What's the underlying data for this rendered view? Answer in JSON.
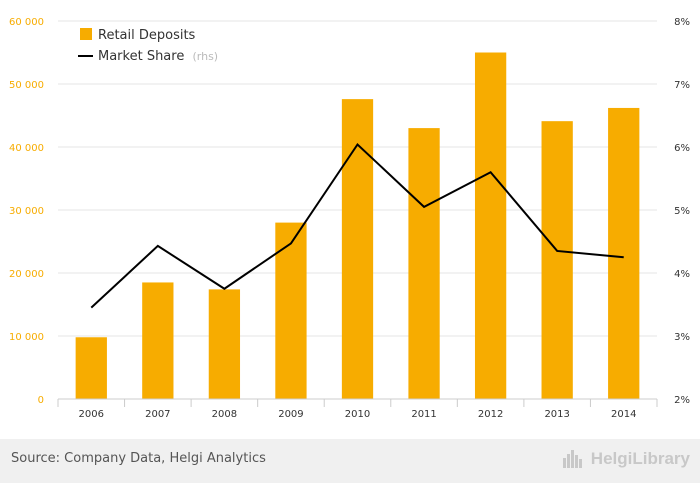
{
  "chart_data": {
    "type": "bar",
    "categories": [
      "2006",
      "2007",
      "2008",
      "2009",
      "2010",
      "2011",
      "2012",
      "2013",
      "2014"
    ],
    "series": [
      {
        "name": "Retail Deposits",
        "type": "bar",
        "axis": "left",
        "values": [
          9800,
          18500,
          17400,
          28000,
          47600,
          43000,
          55000,
          44100,
          46200
        ]
      },
      {
        "name": "Market Share",
        "axis_note": "(rhs)",
        "type": "line",
        "axis": "right",
        "values": [
          3.45,
          4.43,
          3.75,
          4.47,
          6.04,
          5.05,
          5.6,
          4.35,
          4.25
        ]
      }
    ],
    "y_left": {
      "lim": [
        0,
        60000
      ],
      "ticks": [
        0,
        10000,
        20000,
        30000,
        40000,
        50000,
        60000
      ],
      "tick_labels": [
        "0",
        "10 000",
        "20 000",
        "30 000",
        "40 000",
        "50 000",
        "60 000"
      ]
    },
    "y_right": {
      "lim": [
        2,
        8
      ],
      "ticks": [
        2,
        3,
        4,
        5,
        6,
        7,
        8
      ],
      "tick_labels": [
        "2%",
        "3%",
        "4%",
        "5%",
        "6%",
        "7%",
        "8%"
      ]
    },
    "grid": true,
    "legend_position": "top-left",
    "colors": {
      "bar": "#F7AC00",
      "line": "#000000",
      "left_axis_text": "#F7AC00",
      "right_axis_text": "#333333",
      "grid": "#e6e6e6"
    }
  },
  "footer": {
    "source": "Source: Company Data, Helgi Analytics",
    "brand": "HelgiLibrary",
    "brand_icon": "city-skyline-icon"
  }
}
